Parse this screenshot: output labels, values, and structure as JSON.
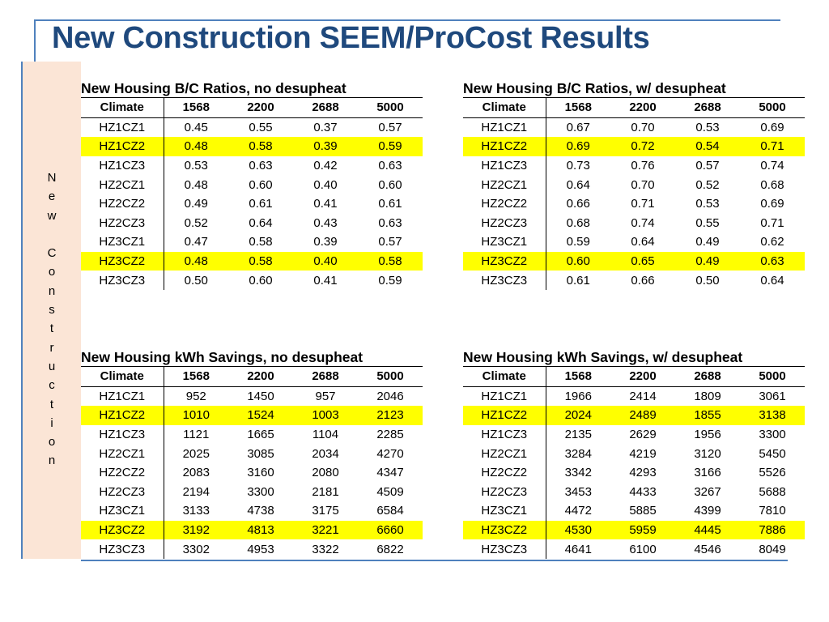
{
  "slide": {
    "title": "New Construction SEEM/ProCost Results",
    "side_label": [
      "N",
      "e",
      "w",
      "",
      "C",
      "o",
      "n",
      "s",
      "t",
      "r",
      "u",
      "c",
      "t",
      "i",
      "o",
      "n"
    ]
  },
  "tables": [
    {
      "caption": "New Housing B/C Ratios, no desupheat",
      "headers": [
        "Climate",
        "1568",
        "2200",
        "2688",
        "5000"
      ],
      "rows": [
        [
          "HZ1CZ1",
          "0.45",
          "0.55",
          "0.37",
          "0.57"
        ],
        [
          "HZ1CZ2",
          "0.48",
          "0.58",
          "0.39",
          "0.59"
        ],
        [
          "HZ1CZ3",
          "0.53",
          "0.63",
          "0.42",
          "0.63"
        ],
        [
          "HZ2CZ1",
          "0.48",
          "0.60",
          "0.40",
          "0.60"
        ],
        [
          "HZ2CZ2",
          "0.49",
          "0.61",
          "0.41",
          "0.61"
        ],
        [
          "HZ2CZ3",
          "0.52",
          "0.64",
          "0.43",
          "0.63"
        ],
        [
          "HZ3CZ1",
          "0.47",
          "0.58",
          "0.39",
          "0.57"
        ],
        [
          "HZ3CZ2",
          "0.48",
          "0.58",
          "0.40",
          "0.58"
        ],
        [
          "HZ3CZ3",
          "0.50",
          "0.60",
          "0.41",
          "0.59"
        ]
      ]
    },
    {
      "caption": "New Housing B/C Ratios, w/ desupheat",
      "headers": [
        "Climate",
        "1568",
        "2200",
        "2688",
        "5000"
      ],
      "rows": [
        [
          "HZ1CZ1",
          "0.67",
          "0.70",
          "0.53",
          "0.69"
        ],
        [
          "HZ1CZ2",
          "0.69",
          "0.72",
          "0.54",
          "0.71"
        ],
        [
          "HZ1CZ3",
          "0.73",
          "0.76",
          "0.57",
          "0.74"
        ],
        [
          "HZ2CZ1",
          "0.64",
          "0.70",
          "0.52",
          "0.68"
        ],
        [
          "HZ2CZ2",
          "0.66",
          "0.71",
          "0.53",
          "0.69"
        ],
        [
          "HZ2CZ3",
          "0.68",
          "0.74",
          "0.55",
          "0.71"
        ],
        [
          "HZ3CZ1",
          "0.59",
          "0.64",
          "0.49",
          "0.62"
        ],
        [
          "HZ3CZ2",
          "0.60",
          "0.65",
          "0.49",
          "0.63"
        ],
        [
          "HZ3CZ3",
          "0.61",
          "0.66",
          "0.50",
          "0.64"
        ]
      ]
    },
    {
      "caption": "New Housing kWh Savings, no desupheat",
      "headers": [
        "Climate",
        "1568",
        "2200",
        "2688",
        "5000"
      ],
      "rows": [
        [
          "HZ1CZ1",
          "952",
          "1450",
          "957",
          "2046"
        ],
        [
          "HZ1CZ2",
          "1010",
          "1524",
          "1003",
          "2123"
        ],
        [
          "HZ1CZ3",
          "1121",
          "1665",
          "1104",
          "2285"
        ],
        [
          "HZ2CZ1",
          "2025",
          "3085",
          "2034",
          "4270"
        ],
        [
          "HZ2CZ2",
          "2083",
          "3160",
          "2080",
          "4347"
        ],
        [
          "HZ2CZ3",
          "2194",
          "3300",
          "2181",
          "4509"
        ],
        [
          "HZ3CZ1",
          "3133",
          "4738",
          "3175",
          "6584"
        ],
        [
          "HZ3CZ2",
          "3192",
          "4813",
          "3221",
          "6660"
        ],
        [
          "HZ3CZ3",
          "3302",
          "4953",
          "3322",
          "6822"
        ]
      ]
    },
    {
      "caption": "New Housing kWh Savings, w/ desupheat",
      "headers": [
        "Climate",
        "1568",
        "2200",
        "2688",
        "5000"
      ],
      "rows": [
        [
          "HZ1CZ1",
          "1966",
          "2414",
          "1809",
          "3061"
        ],
        [
          "HZ1CZ2",
          "2024",
          "2489",
          "1855",
          "3138"
        ],
        [
          "HZ1CZ3",
          "2135",
          "2629",
          "1956",
          "3300"
        ],
        [
          "HZ2CZ1",
          "3284",
          "4219",
          "3120",
          "5450"
        ],
        [
          "HZ2CZ2",
          "3342",
          "4293",
          "3166",
          "5526"
        ],
        [
          "HZ2CZ3",
          "3453",
          "4433",
          "3267",
          "5688"
        ],
        [
          "HZ3CZ1",
          "4472",
          "5885",
          "4399",
          "7810"
        ],
        [
          "HZ3CZ2",
          "4530",
          "5959",
          "4445",
          "7886"
        ],
        [
          "HZ3CZ3",
          "4641",
          "6100",
          "4546",
          "8049"
        ]
      ]
    }
  ],
  "highlight_rows": [
    "HZ1CZ2",
    "HZ3CZ2"
  ],
  "colors": {
    "highlight": "#ffff00",
    "title": "#1f497d",
    "accent": "#4f81bd",
    "side_panel": "#fbe5d6"
  }
}
